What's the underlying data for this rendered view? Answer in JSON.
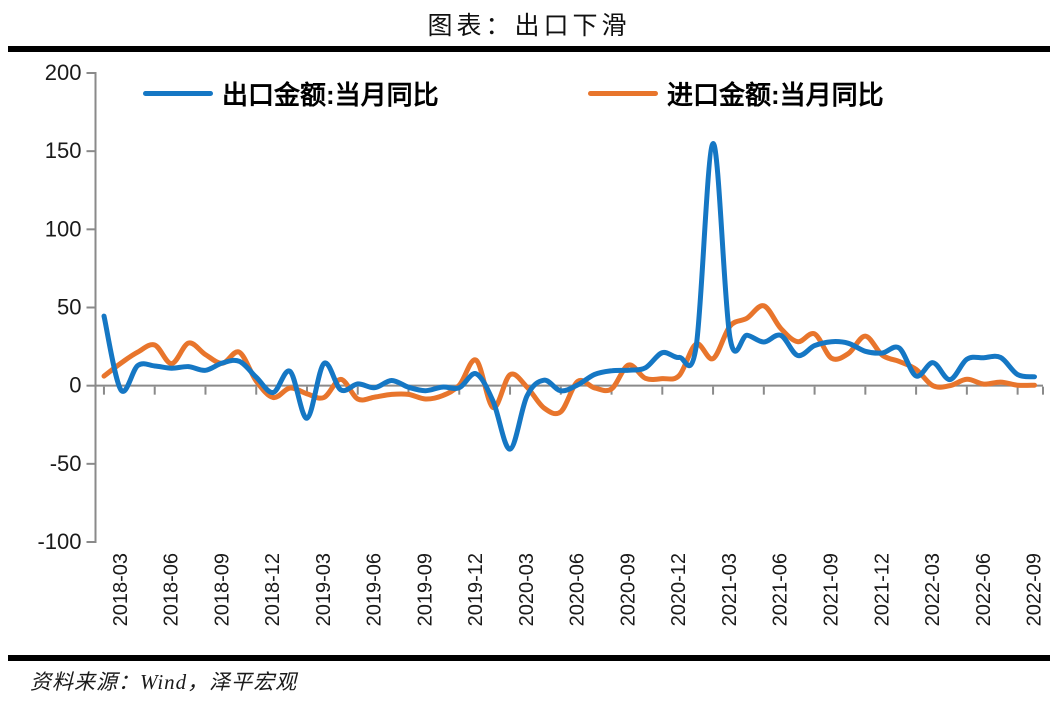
{
  "chart_data": {
    "type": "line",
    "title": "图表：出口下滑",
    "source": "资料来源：Wind，泽平宏观",
    "legend_position": "top",
    "grid": false,
    "smoothed": true,
    "ylim": [
      -100,
      200
    ],
    "y_ticks": [
      200,
      150,
      100,
      50,
      0,
      -50,
      -100
    ],
    "x_tick_labels": [
      "2018-03",
      "2018-06",
      "2018-09",
      "2018-12",
      "2019-03",
      "2019-06",
      "2019-09",
      "2019-12",
      "2020-03",
      "2020-06",
      "2020-09",
      "2020-12",
      "2021-03",
      "2021-06",
      "2021-09",
      "2021-12",
      "2022-03",
      "2022-06",
      "2022-09"
    ],
    "months": [
      "2018-02",
      "2018-03",
      "2018-04",
      "2018-05",
      "2018-06",
      "2018-07",
      "2018-08",
      "2018-09",
      "2018-10",
      "2018-11",
      "2018-12",
      "2019-01",
      "2019-02",
      "2019-03",
      "2019-04",
      "2019-05",
      "2019-06",
      "2019-07",
      "2019-08",
      "2019-09",
      "2019-10",
      "2019-11",
      "2019-12",
      "2020-01",
      "2020-02",
      "2020-03",
      "2020-04",
      "2020-05",
      "2020-06",
      "2020-07",
      "2020-08",
      "2020-09",
      "2020-10",
      "2020-11",
      "2020-12",
      "2021-01",
      "2021-02",
      "2021-03",
      "2021-04",
      "2021-05",
      "2021-06",
      "2021-07",
      "2021-08",
      "2021-09",
      "2021-10",
      "2021-11",
      "2021-12",
      "2022-01",
      "2022-02",
      "2022-03",
      "2022-04",
      "2022-05",
      "2022-06",
      "2022-07",
      "2022-08",
      "2022-09"
    ],
    "series": [
      {
        "name": "出口金额:当月同比",
        "color": "#1577C4",
        "values": [
          44.5,
          -2.7,
          12.9,
          12.6,
          11.2,
          12.2,
          9.8,
          14.5,
          15.6,
          5.4,
          -4.4,
          9.1,
          -20.8,
          14.2,
          -2.7,
          1.1,
          -1.3,
          3.3,
          -1.0,
          -3.2,
          -0.9,
          -1.3,
          7.6,
          -10.0,
          -40.6,
          -6.6,
          3.5,
          -3.3,
          0.5,
          7.2,
          9.5,
          9.9,
          11.4,
          21.1,
          18.1,
          24.8,
          154.9,
          30.6,
          32.3,
          27.9,
          32.2,
          19.3,
          25.6,
          28.1,
          27.1,
          22.0,
          20.9,
          24.1,
          6.2,
          14.7,
          3.9,
          16.9,
          17.9,
          18.0,
          7.1,
          5.7
        ]
      },
      {
        "name": "进口金额:当月同比",
        "color": "#E8752C",
        "values": [
          6.1,
          14.4,
          21.5,
          26.0,
          14.1,
          27.3,
          19.9,
          14.3,
          21.4,
          3.0,
          -7.6,
          -1.5,
          -5.2,
          -7.6,
          4.0,
          -8.5,
          -7.3,
          -5.6,
          -5.6,
          -8.5,
          -6.4,
          0.3,
          16.3,
          -14.0,
          7.0,
          -0.9,
          -14.2,
          -16.7,
          2.7,
          -1.4,
          -2.1,
          13.2,
          4.7,
          4.5,
          6.5,
          26.6,
          17.3,
          38.1,
          43.1,
          51.1,
          36.7,
          28.1,
          33.1,
          17.6,
          20.6,
          31.7,
          19.5,
          15.5,
          10.4,
          -0.1,
          0.0,
          4.1,
          1.0,
          2.3,
          0.3,
          0.3
        ]
      }
    ],
    "axis_color": "#8A8A8A",
    "text_color": "#1A1A1A",
    "line_width": 5
  }
}
